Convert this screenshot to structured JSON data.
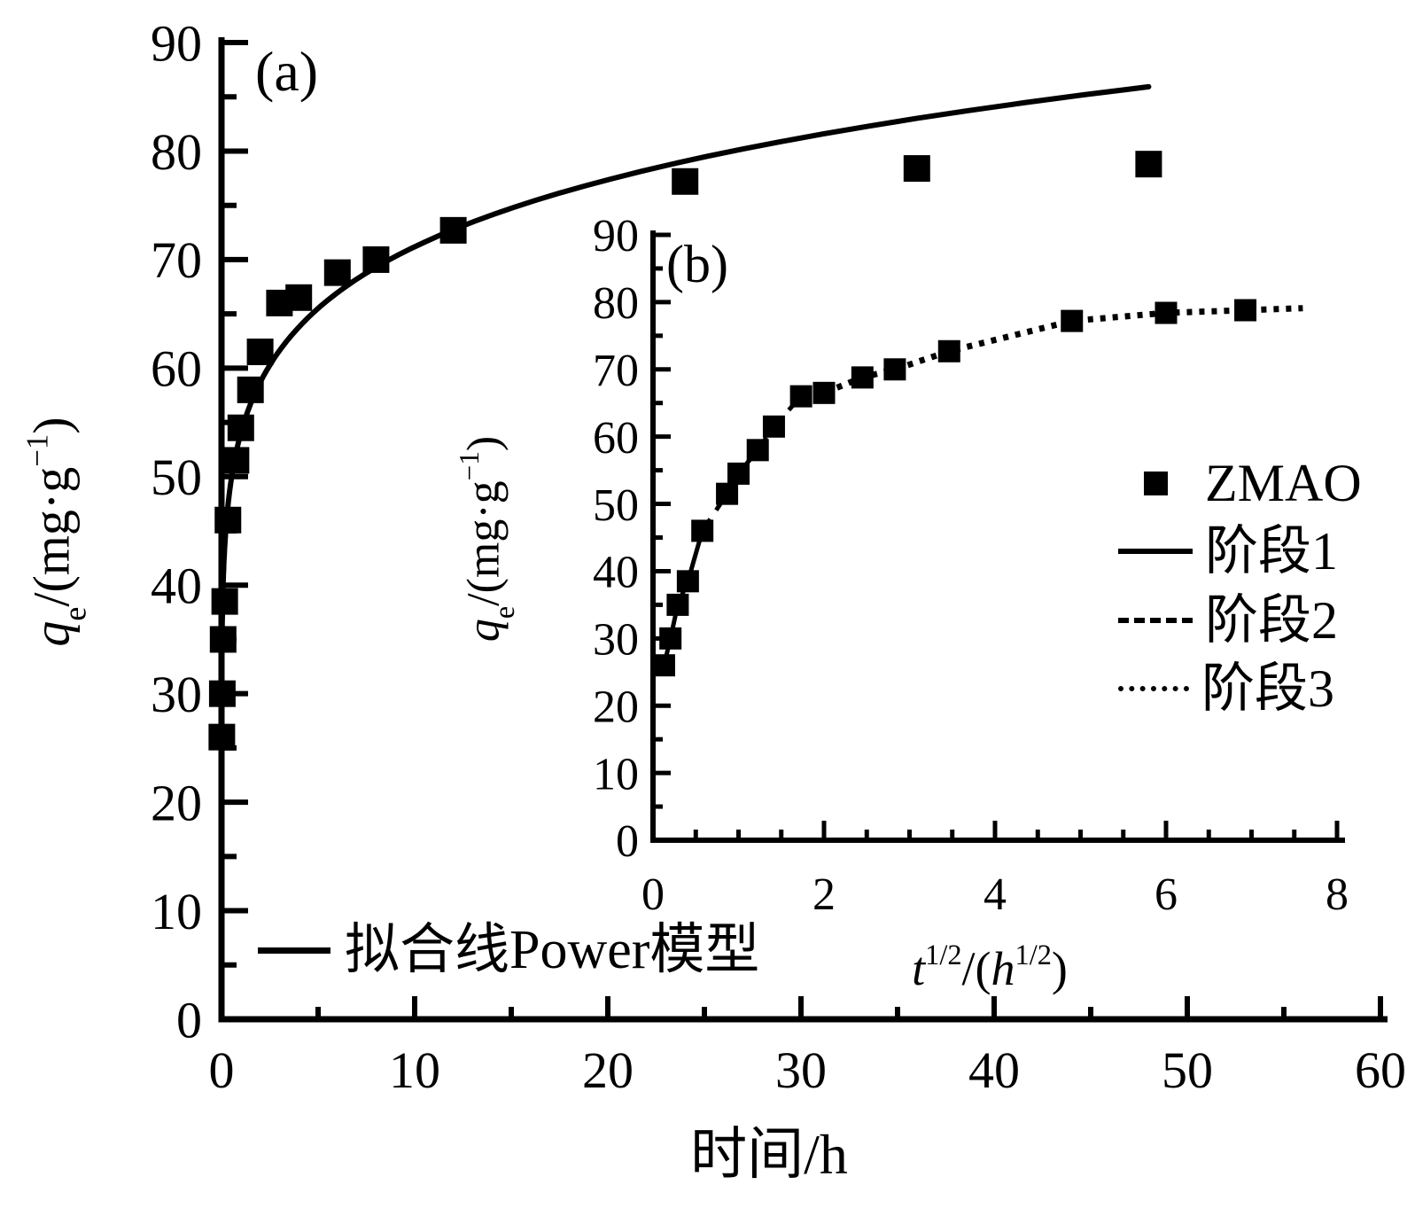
{
  "figure_text": {
    "panel_a_label": "(a)",
    "panel_b_label": "(b)"
  },
  "axis_labels": {
    "qe_var": "q",
    "qe_sub": "e",
    "qe_rest": "/(mg·g",
    "qe_sup": "−1",
    "qe_close": ")",
    "time_label": "时间/h",
    "t_var": "t",
    "t_sup": "1/2",
    "t_mid": "/(",
    "h_var": "h",
    "h_sup": "1/2",
    "t_close": ")"
  },
  "legend_a": {
    "label": "拟合线Power模型"
  },
  "legend_b": {
    "items": [
      {
        "label": "ZMAO",
        "sample": "marker"
      },
      {
        "label": "阶段1",
        "sample": "solid"
      },
      {
        "label": "阶段2",
        "sample": "dashed"
      },
      {
        "label": "阶段3",
        "sample": "dotted"
      }
    ]
  },
  "chart_data": [
    {
      "id": "main",
      "type": "scatter",
      "panel": "(a)",
      "xlabel": "时间/h",
      "ylabel": "qe/(mg·g−1)",
      "xlim": [
        0,
        60
      ],
      "ylim": [
        0,
        90
      ],
      "x_major_ticks": [
        0,
        10,
        20,
        30,
        40,
        50,
        60
      ],
      "x_minor_ticks": [
        5,
        15,
        25,
        35,
        45,
        55
      ],
      "y_major_ticks": [
        0,
        10,
        20,
        30,
        40,
        50,
        60,
        70,
        80,
        90
      ],
      "y_minor_ticks": [
        5,
        15,
        25,
        35,
        45,
        55,
        65,
        75,
        85
      ],
      "grid": false,
      "series": [
        {
          "name": "ZMAO",
          "kind": "points",
          "marker": "square",
          "t_hours": [
            0.017,
            0.042,
            0.083,
            0.167,
            0.333,
            0.75,
            1,
            1.5,
            2,
            3,
            4,
            6,
            8,
            12,
            24,
            36,
            48
          ],
          "qe": [
            26,
            30,
            35,
            38.5,
            46,
            51.5,
            54.5,
            58,
            61.5,
            66,
            66.5,
            68.8,
            70,
            72.7,
            77.2,
            78.4,
            78.8
          ]
        },
        {
          "name": "拟合线Power模型",
          "kind": "fit-curve",
          "model": "power",
          "equation": "qe = 54 * t^0.12",
          "a": 54,
          "b": 0.12,
          "t_min": 0.002,
          "t_max": 48
        }
      ]
    },
    {
      "id": "inset",
      "type": "scatter",
      "panel": "(b)",
      "xlabel": "t1/2/(h1/2)",
      "ylabel": "qe/(mg·g−1)",
      "xlim": [
        0,
        8
      ],
      "ylim": [
        0,
        90
      ],
      "x_major_ticks": [
        0,
        2,
        4,
        6,
        8
      ],
      "x_minor_step": 0.5,
      "y_major_ticks": [
        0,
        10,
        20,
        30,
        40,
        50,
        60,
        70,
        80,
        90
      ],
      "y_minor_ticks": [
        5,
        15,
        25,
        35,
        45,
        55,
        65,
        75,
        85
      ],
      "grid": false,
      "series": [
        {
          "name": "ZMAO",
          "kind": "points",
          "marker": "square",
          "sqrt_t": [
            0.129,
            0.204,
            0.289,
            0.408,
            0.577,
            0.866,
            1.0,
            1.225,
            1.414,
            1.732,
            2.0,
            2.449,
            2.828,
            3.464,
            4.899,
            6.0,
            6.928
          ],
          "qe": [
            26,
            30,
            35,
            38.5,
            46,
            51.5,
            54.5,
            58,
            61.5,
            66,
            66.5,
            68.8,
            70,
            72.7,
            77.2,
            78.4,
            78.8
          ]
        },
        {
          "name": "阶段1",
          "kind": "stage-line",
          "style": "solid",
          "point_index_range": [
            0,
            4
          ]
        },
        {
          "name": "阶段2",
          "kind": "stage-line",
          "style": "dashed",
          "point_index_range": [
            4,
            9
          ]
        },
        {
          "name": "阶段3",
          "kind": "stage-line",
          "style": "dotted",
          "point_index_range": [
            9,
            16
          ],
          "extension": {
            "x": 7.6,
            "y": 79.1
          }
        }
      ]
    }
  ]
}
